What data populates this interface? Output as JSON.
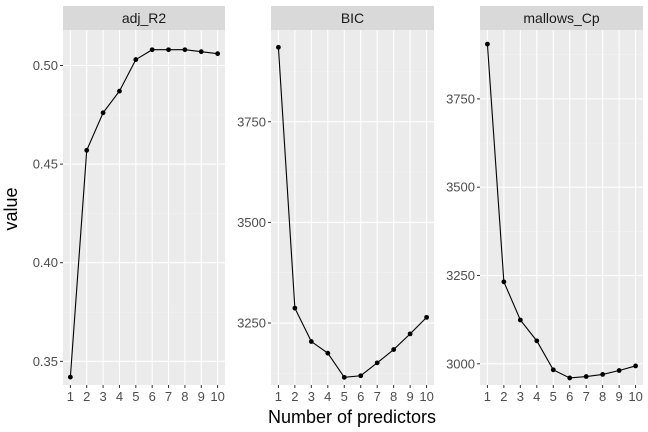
{
  "chart_data": {
    "type": "line",
    "facet": "wrap",
    "xlabel": "Number of predictors",
    "ylabel": "value",
    "x": [
      1,
      2,
      3,
      4,
      5,
      6,
      7,
      8,
      9,
      10
    ],
    "x_ticks": [
      "1",
      "2",
      "3",
      "4",
      "5",
      "6",
      "7",
      "8",
      "9",
      "10"
    ],
    "colors": {
      "panel": "#ebebeb",
      "strip": "#d9d9d9",
      "grid_major": "#ffffff",
      "grid_minor": "#f2f2f2",
      "line": "#000000"
    },
    "panels": [
      {
        "strip": "adj_R2",
        "ylim": [
          0.338,
          0.518
        ],
        "yticks": [
          0.35,
          0.4,
          0.45,
          0.5
        ],
        "ytick_labels": [
          "0.35",
          "0.40",
          "0.45",
          "0.50"
        ],
        "values": [
          0.342,
          0.457,
          0.476,
          0.487,
          0.503,
          0.508,
          0.508,
          0.508,
          0.507,
          0.506
        ]
      },
      {
        "strip": "BIC",
        "ylim": [
          3096,
          3978
        ],
        "yticks": [
          3250,
          3500,
          3750
        ],
        "ytick_labels": [
          "3250",
          "3500",
          "3750"
        ],
        "values": [
          3935,
          3287,
          3204,
          3175,
          3115,
          3119,
          3151,
          3184,
          3223,
          3264
        ]
      },
      {
        "strip": "mallows_Cp",
        "ylim": [
          2940,
          3945
        ],
        "yticks": [
          3000,
          3250,
          3500,
          3750
        ],
        "ytick_labels": [
          "3000",
          "3250",
          "3500",
          "3750"
        ],
        "values": [
          3905,
          3232,
          3124,
          3065,
          2983,
          2960,
          2964,
          2970,
          2981,
          2994
        ]
      }
    ]
  }
}
